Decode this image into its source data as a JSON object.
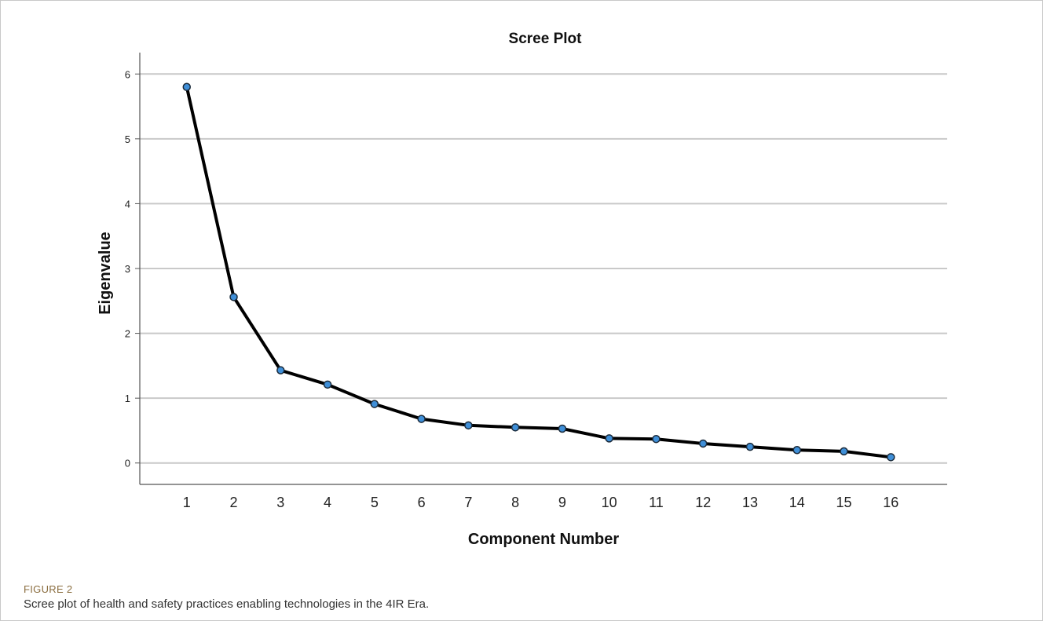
{
  "figure": {
    "label": "FIGURE 2",
    "caption": "Scree plot of health and safety practices enabling technologies in the 4IR Era."
  },
  "colors": {
    "line": "#000000",
    "marker_fill": "#3f8fd8",
    "marker_stroke": "#1a2a3a",
    "grid": "#c9c9c9",
    "axis": "#555555",
    "caption_label": "#8a6d3f"
  },
  "chart_data": {
    "type": "line",
    "title": "Scree Plot",
    "xlabel": "Component Number",
    "ylabel": "Eigenvalue",
    "x": [
      1,
      2,
      3,
      4,
      5,
      6,
      7,
      8,
      9,
      10,
      11,
      12,
      13,
      14,
      15,
      16
    ],
    "series": [
      {
        "values": [
          5.8,
          2.56,
          1.43,
          1.21,
          0.91,
          0.68,
          0.58,
          0.55,
          0.53,
          0.38,
          0.37,
          0.3,
          0.25,
          0.2,
          0.18,
          0.09
        ]
      }
    ],
    "ylim": [
      -0.33,
      6.33
    ],
    "xlim": [
      0,
      17.2
    ],
    "yticks": [
      0,
      1,
      2,
      3,
      4,
      5,
      6
    ],
    "xticks": [
      1,
      2,
      3,
      4,
      5,
      6,
      7,
      8,
      9,
      10,
      11,
      12,
      13,
      14,
      15,
      16
    ],
    "grid": "horizontal",
    "legend": "none"
  }
}
